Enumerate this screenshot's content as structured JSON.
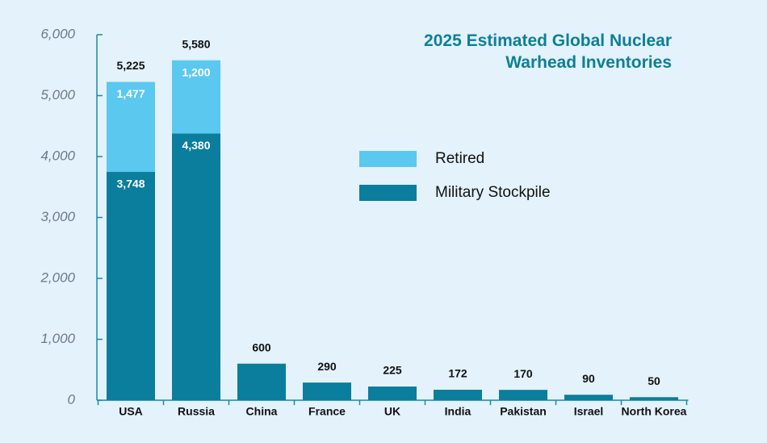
{
  "chart_data": {
    "type": "stacked-bar",
    "title": "2025 Estimated Global Nuclear Warhead Inventories",
    "categories": [
      "USA",
      "Russia",
      "China",
      "France",
      "UK",
      "India",
      "Pakistan",
      "Israel",
      "North Korea"
    ],
    "series": [
      {
        "name": "Military Stockpile",
        "color": "#0a7e9c",
        "values": [
          3748,
          4380,
          600,
          290,
          225,
          172,
          170,
          90,
          50
        ],
        "value_labels": [
          "3,748",
          "4,380",
          null,
          null,
          null,
          null,
          null,
          null,
          null
        ]
      },
      {
        "name": "Retired",
        "color": "#5bc8f0",
        "values": [
          1477,
          1200,
          null,
          null,
          null,
          null,
          null,
          null,
          null
        ],
        "value_labels": [
          "1,477",
          "1,200",
          null,
          null,
          null,
          null,
          null,
          null,
          null
        ]
      }
    ],
    "totals": [
      5225,
      5580,
      600,
      290,
      225,
      172,
      170,
      90,
      50
    ],
    "total_labels": [
      "5,225",
      "5,580",
      "600",
      "290",
      "225",
      "172",
      "170",
      "90",
      "50"
    ],
    "ylim": [
      0,
      6000
    ],
    "yticks": [
      0,
      {
        "value": 1000,
        "label": "1,000"
      },
      {
        "value": 2000,
        "label": "2,000"
      },
      {
        "value": 3000,
        "label": "3,000"
      },
      {
        "value": 4000,
        "label": "4,000"
      },
      {
        "value": 5000,
        "label": "5,000"
      },
      {
        "value": 6000,
        "label": "6,000"
      }
    ],
    "grid": false
  }
}
